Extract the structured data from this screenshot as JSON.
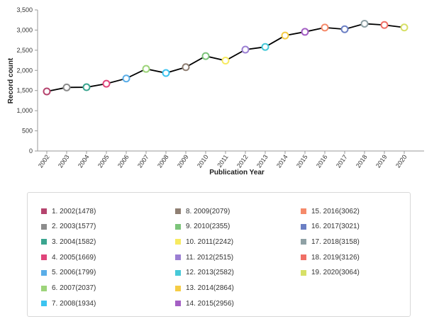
{
  "chart_data": {
    "type": "line",
    "xlabel": "Publication Year",
    "ylabel": "Record count",
    "ylim": [
      0,
      3500
    ],
    "yticks": [
      "0",
      "500",
      "1,000",
      "1,500",
      "2,000",
      "2,500",
      "3,000",
      "3,500"
    ],
    "grid": false,
    "line_color": "#000000",
    "categories": [
      "2002",
      "2003",
      "2004",
      "2005",
      "2006",
      "2007",
      "2008",
      "2009",
      "2010",
      "2011",
      "2012",
      "2013",
      "2014",
      "2015",
      "2016",
      "2017",
      "2018",
      "2019",
      "2020"
    ],
    "values": [
      1478,
      1577,
      1582,
      1669,
      1799,
      2037,
      1934,
      2079,
      2355,
      2242,
      2515,
      2582,
      2864,
      2956,
      3062,
      3021,
      3158,
      3126,
      3064
    ],
    "point_colors": [
      "#b5446e",
      "#8c8c8c",
      "#3aa58f",
      "#e0457b",
      "#5aaee8",
      "#9dd47a",
      "#3cc4f0",
      "#8f7f73",
      "#7cc47a",
      "#f7ea60",
      "#9b7fd3",
      "#47c9d8",
      "#f5cc45",
      "#a45fc4",
      "#f58a6a",
      "#6b7fc4",
      "#8fa1a5",
      "#f06f66",
      "#d7e067"
    ],
    "legend_position": "bottom",
    "legend": [
      "1. 2002(1478)",
      "2. 2003(1577)",
      "3. 2004(1582)",
      "4. 2005(1669)",
      "5. 2006(1799)",
      "6. 2007(2037)",
      "7. 2008(1934)",
      "8. 2009(2079)",
      "9. 2010(2355)",
      "10. 2011(2242)",
      "11. 2012(2515)",
      "12. 2013(2582)",
      "13. 2014(2864)",
      "14. 2015(2956)",
      "15. 2016(3062)",
      "16. 2017(3021)",
      "17. 2018(3158)",
      "18. 2019(3126)",
      "19. 2020(3064)"
    ]
  }
}
